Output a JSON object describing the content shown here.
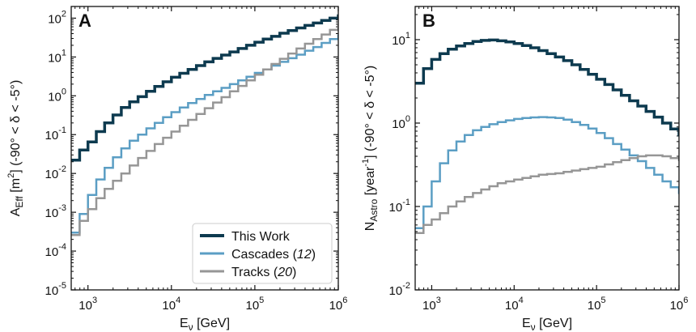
{
  "colors": {
    "this_work": "#0d3a4f",
    "cascades": "#5b9ec4",
    "tracks": "#969696",
    "axis": "#111111",
    "background": "#ffffff"
  },
  "chart_data": [
    {
      "type": "line",
      "step": true,
      "panel_label": "A",
      "xlabel_main": "E",
      "xlabel_sub": "ν",
      "xlabel_unit": " [GeV]",
      "ylabel_main": "A",
      "ylabel_sub": "Eff",
      "ylabel_unit_pre": " [m",
      "ylabel_unit_sup": "2",
      "ylabel_unit_post": "] (-90° < δ < -5°)",
      "x_scale": "log",
      "y_scale": "log",
      "xlim": [
        630,
        1000000
      ],
      "ylim": [
        1e-05,
        200
      ],
      "x_ticks": [
        {
          "value": 1000,
          "base": "10",
          "exp": "3"
        },
        {
          "value": 10000,
          "base": "10",
          "exp": "4"
        },
        {
          "value": 100000,
          "base": "10",
          "exp": "5"
        },
        {
          "value": 1000000,
          "base": "10",
          "exp": "6"
        }
      ],
      "y_ticks": [
        {
          "value": 1e-05,
          "base": "10",
          "exp": "-5"
        },
        {
          "value": 0.0001,
          "base": "10",
          "exp": "-4"
        },
        {
          "value": 0.001,
          "base": "10",
          "exp": "-3"
        },
        {
          "value": 0.01,
          "base": "10",
          "exp": "-2"
        },
        {
          "value": 0.1,
          "base": "10",
          "exp": "-1"
        },
        {
          "value": 1,
          "base": "10",
          "exp": "0"
        },
        {
          "value": 10,
          "base": "10",
          "exp": "1"
        },
        {
          "value": 100,
          "base": "10",
          "exp": "2"
        }
      ],
      "bin_edges_log10_start": 2.8,
      "bins_per_decade": 10,
      "series": [
        {
          "name": "This Work",
          "color_key": "this_work",
          "width": 3.5,
          "values": [
            0.022,
            0.04,
            0.065,
            0.12,
            0.2,
            0.32,
            0.5,
            0.7,
            0.95,
            1.3,
            1.75,
            2.3,
            3.0,
            3.8,
            4.8,
            6.0,
            7.5,
            9.2,
            11.2,
            13.5,
            16.5,
            20,
            24,
            29,
            34,
            41,
            48,
            56,
            65,
            75,
            87,
            100,
            115,
            130
          ]
        },
        {
          "name": "Cascades",
          "ref": "12",
          "color_key": "cascades",
          "width": 2.5,
          "values": [
            0.0003,
            0.0009,
            0.0028,
            0.007,
            0.014,
            0.026,
            0.044,
            0.07,
            0.1,
            0.145,
            0.2,
            0.28,
            0.38,
            0.5,
            0.65,
            0.83,
            1.05,
            1.3,
            1.6,
            2.0,
            2.5,
            3.1,
            3.9,
            4.8,
            6.0,
            7.5,
            9.3,
            11.5,
            14.5,
            18,
            23,
            29,
            36,
            45
          ]
        },
        {
          "name": "Tracks",
          "ref": "20",
          "color_key": "tracks",
          "width": 2.5,
          "values": [
            0.00026,
            0.0006,
            0.0012,
            0.0023,
            0.004,
            0.0065,
            0.01,
            0.016,
            0.025,
            0.038,
            0.057,
            0.083,
            0.12,
            0.17,
            0.24,
            0.34,
            0.48,
            0.67,
            0.92,
            1.3,
            1.8,
            2.5,
            3.5,
            4.8,
            6.6,
            9.0,
            12.3,
            16.5,
            22,
            29,
            38,
            50,
            65,
            85
          ]
        }
      ],
      "legend": {
        "position": "lower-right",
        "items": [
          {
            "label": "This Work",
            "ref": "",
            "color_key": "this_work",
            "width": 4
          },
          {
            "label": "Cascades ",
            "ref": "12",
            "color_key": "cascades",
            "width": 3
          },
          {
            "label": "Tracks ",
            "ref": "20",
            "color_key": "tracks",
            "width": 3
          }
        ]
      }
    },
    {
      "type": "line",
      "step": true,
      "panel_label": "B",
      "xlabel_main": "E",
      "xlabel_sub": "ν",
      "xlabel_unit": " [GeV]",
      "ylabel_main": "N",
      "ylabel_sub": "Astro",
      "ylabel_unit_pre": " [year",
      "ylabel_unit_sup": "-1",
      "ylabel_unit_post": "] (-90° < δ < -5°)",
      "x_scale": "log",
      "y_scale": "log",
      "xlim": [
        630,
        1000000
      ],
      "ylim": [
        0.01,
        25
      ],
      "x_ticks": [
        {
          "value": 1000,
          "base": "10",
          "exp": "3"
        },
        {
          "value": 10000,
          "base": "10",
          "exp": "4"
        },
        {
          "value": 100000,
          "base": "10",
          "exp": "5"
        },
        {
          "value": 1000000,
          "base": "10",
          "exp": "6"
        }
      ],
      "y_ticks": [
        {
          "value": 0.01,
          "base": "10",
          "exp": "-2"
        },
        {
          "value": 0.1,
          "base": "10",
          "exp": "-1"
        },
        {
          "value": 1,
          "base": "10",
          "exp": "0"
        },
        {
          "value": 10,
          "base": "10",
          "exp": "1"
        }
      ],
      "bin_edges_log10_start": 2.8,
      "bins_per_decade": 10,
      "series": [
        {
          "name": "This Work",
          "color_key": "this_work",
          "width": 3.5,
          "values": [
            3.0,
            4.5,
            5.8,
            6.8,
            7.7,
            8.4,
            9.0,
            9.5,
            9.8,
            9.9,
            9.7,
            9.4,
            9.0,
            8.5,
            8.0,
            7.4,
            6.8,
            6.2,
            5.6,
            5.0,
            4.4,
            3.85,
            3.35,
            2.9,
            2.5,
            2.15,
            1.85,
            1.6,
            1.38,
            1.18,
            1.0,
            0.85,
            0.72,
            0.55
          ]
        },
        {
          "name": "Cascades",
          "color_key": "cascades",
          "width": 2.5,
          "values": [
            0.055,
            0.1,
            0.2,
            0.33,
            0.47,
            0.6,
            0.72,
            0.82,
            0.9,
            0.97,
            1.03,
            1.08,
            1.12,
            1.15,
            1.17,
            1.18,
            1.17,
            1.15,
            1.1,
            1.03,
            0.95,
            0.86,
            0.76,
            0.66,
            0.56,
            0.48,
            0.41,
            0.35,
            0.29,
            0.24,
            0.2,
            0.17,
            0.145,
            0.125
          ]
        },
        {
          "name": "Tracks",
          "color_key": "tracks",
          "width": 2.5,
          "values": [
            0.048,
            0.06,
            0.07,
            0.083,
            0.1,
            0.115,
            0.13,
            0.145,
            0.16,
            0.175,
            0.19,
            0.2,
            0.21,
            0.22,
            0.23,
            0.24,
            0.245,
            0.25,
            0.26,
            0.27,
            0.28,
            0.29,
            0.3,
            0.32,
            0.34,
            0.36,
            0.38,
            0.4,
            0.41,
            0.41,
            0.4,
            0.38,
            0.36,
            0.34
          ]
        }
      ]
    }
  ]
}
